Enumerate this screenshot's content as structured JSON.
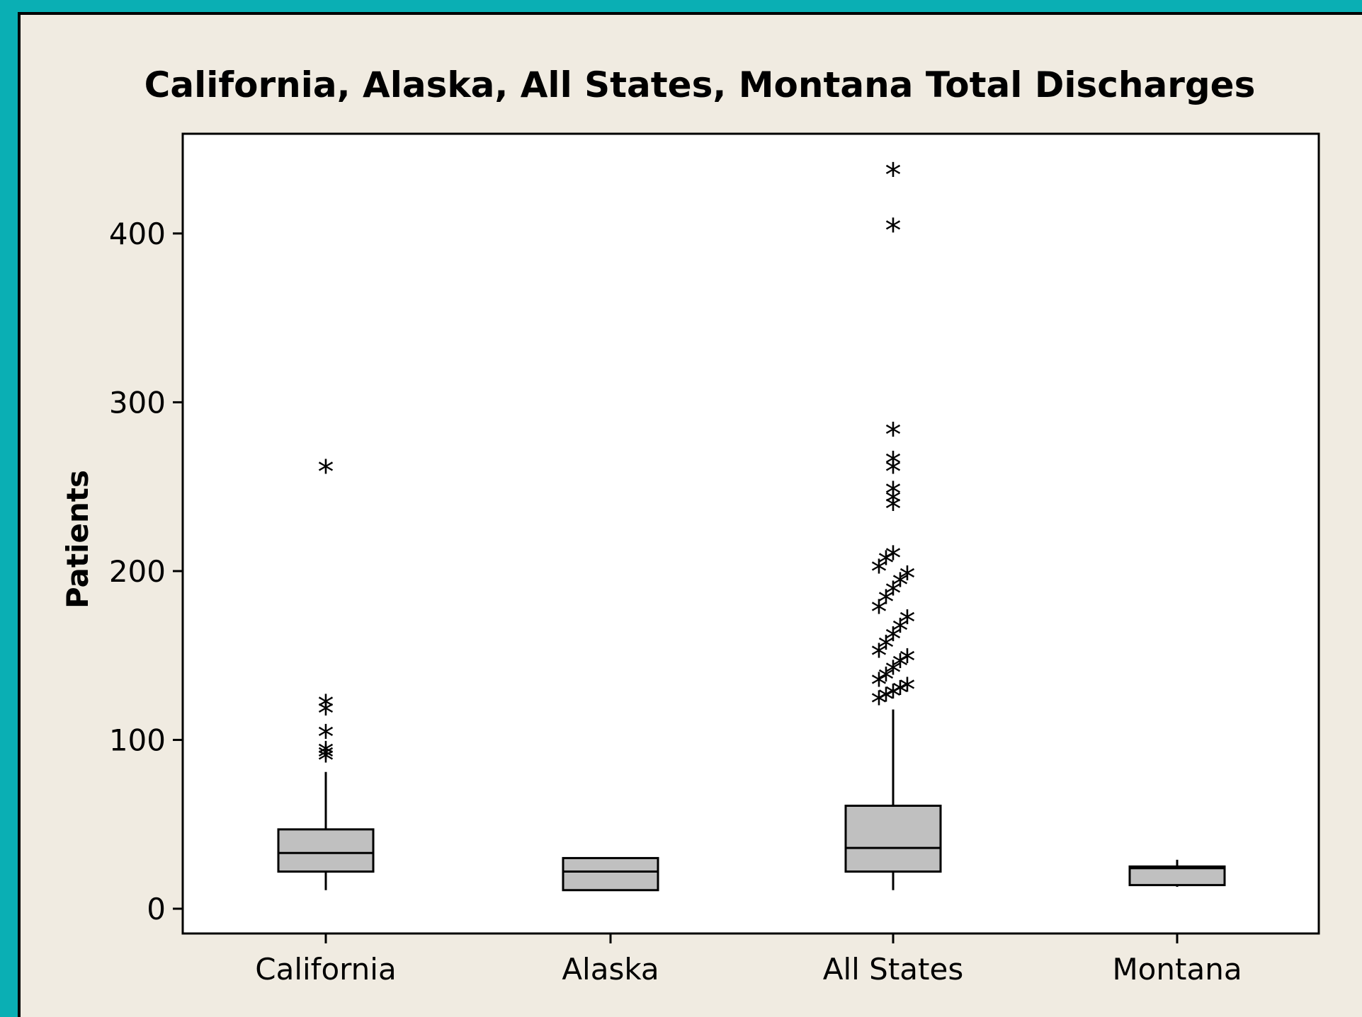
{
  "chart_data": {
    "type": "box",
    "title": "California, Alaska, All States, Montana Total Discharges",
    "xlabel": "",
    "ylabel": "Patients",
    "ylim": [
      -15,
      455
    ],
    "yticks": [
      0,
      100,
      200,
      300,
      400
    ],
    "categories": [
      "California",
      "Alaska",
      "All States",
      "Montana"
    ],
    "box_color": "#c0c0c0",
    "outlier_marker": "*",
    "boxes": [
      {
        "category": "California",
        "whisker_low": 11,
        "q1": 22,
        "median": 33,
        "q3": 47,
        "whisker_high": 81,
        "outliers": [
          88,
          90,
          92,
          102,
          116,
          120,
          259
        ]
      },
      {
        "category": "Alaska",
        "whisker_low": 11,
        "q1": 11,
        "median": 22,
        "q3": 30,
        "whisker_high": 30,
        "outliers": []
      },
      {
        "category": "All States",
        "whisker_low": 11,
        "q1": 22,
        "median": 36,
        "q3": 61,
        "whisker_high": 118,
        "outliers": [
          122,
          124,
          126,
          128,
          130,
          133,
          136,
          140,
          144,
          147,
          150,
          155,
          160,
          165,
          170,
          176,
          182,
          187,
          192,
          196,
          200,
          205,
          208,
          237,
          241,
          246,
          259,
          264,
          281,
          402,
          435
        ]
      },
      {
        "category": "Montana",
        "whisker_low": 13,
        "q1": 14,
        "median": 24,
        "q3": 25,
        "whisker_high": 29,
        "outliers": []
      }
    ]
  }
}
